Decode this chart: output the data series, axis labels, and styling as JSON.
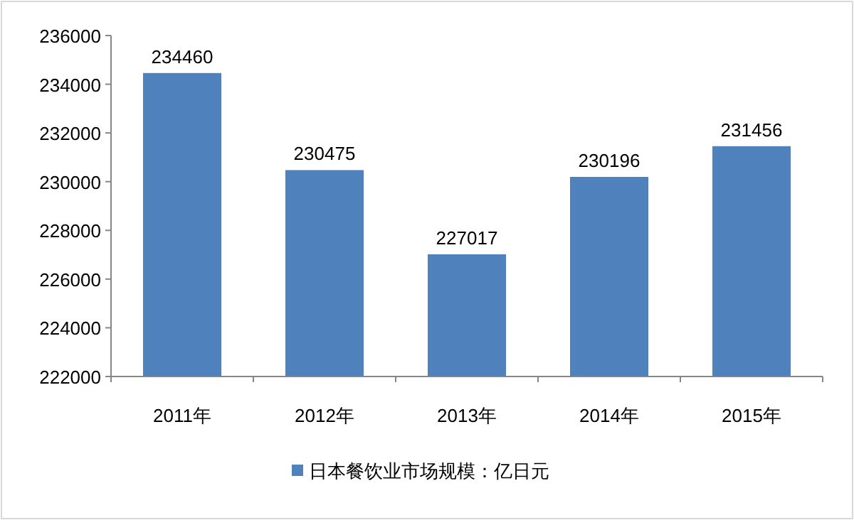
{
  "chart_data": {
    "type": "bar",
    "categories": [
      "2011年",
      "2012年",
      "2013年",
      "2014年",
      "2015年"
    ],
    "series": [
      {
        "name": "日本餐饮业市场规模：亿日元",
        "color": "#4f81bd",
        "values": [
          234460,
          230475,
          227017,
          230196,
          231456
        ]
      }
    ],
    "ylim": [
      222000,
      236000
    ],
    "yticks": [
      222000,
      224000,
      226000,
      228000,
      230000,
      232000,
      234000,
      236000
    ],
    "data_labels": true,
    "legend": "bottom"
  }
}
